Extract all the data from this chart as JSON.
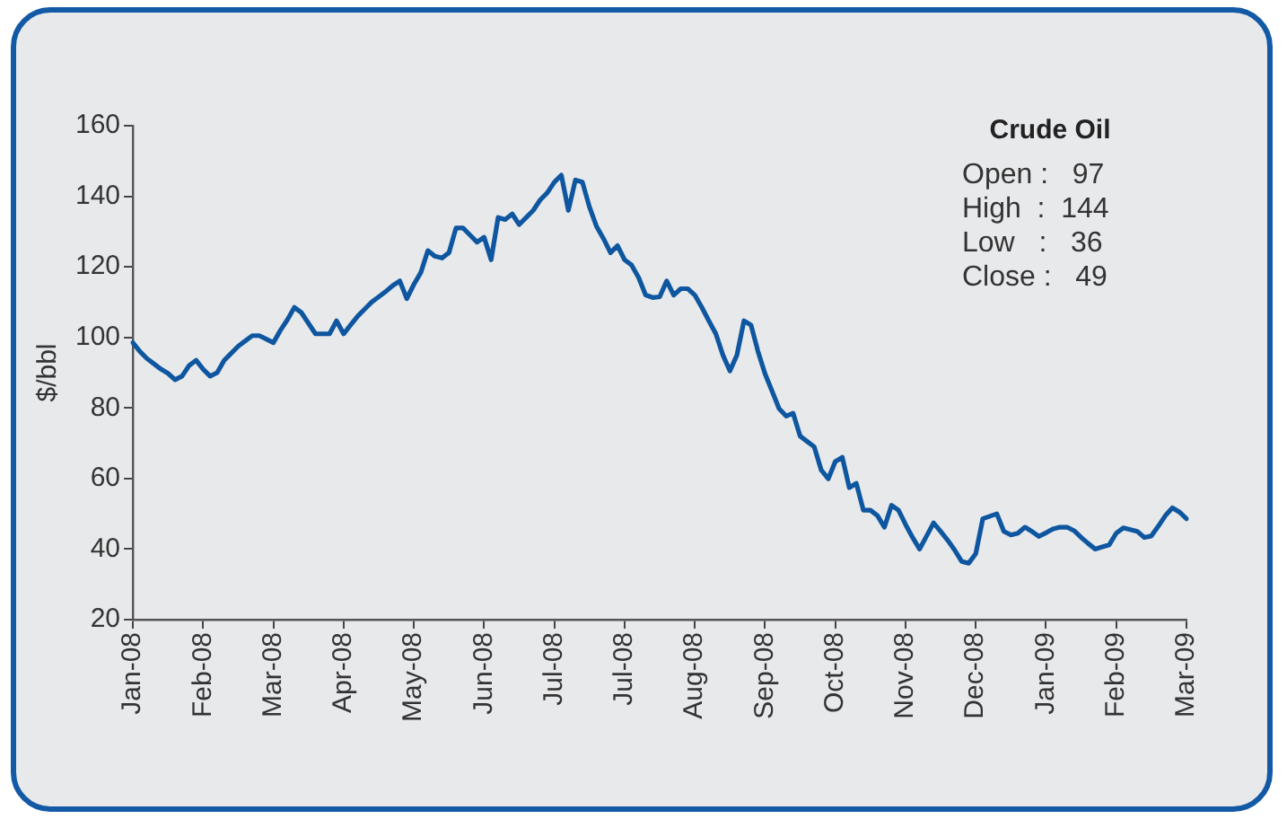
{
  "chart_data": {
    "type": "line",
    "title": "Crude Oil",
    "ylabel": "$/bbl",
    "annotations": [
      "Open :   97",
      "High  :  144",
      "Low   :   36",
      "Close :   49"
    ],
    "categories": [
      "Jan-08",
      null,
      null,
      null,
      null,
      null,
      null,
      null,
      null,
      null,
      "Feb-08",
      null,
      null,
      null,
      null,
      null,
      null,
      null,
      null,
      null,
      "Mar-08",
      null,
      null,
      null,
      null,
      null,
      null,
      null,
      null,
      null,
      "Apr-08",
      null,
      null,
      null,
      null,
      null,
      null,
      null,
      null,
      null,
      "May-08",
      null,
      null,
      null,
      null,
      null,
      null,
      null,
      null,
      null,
      "Jun-08",
      null,
      null,
      null,
      null,
      null,
      null,
      null,
      null,
      null,
      "Jul-08",
      null,
      null,
      null,
      null,
      null,
      null,
      null,
      null,
      null,
      "Jul-08",
      null,
      null,
      null,
      null,
      null,
      null,
      null,
      null,
      null,
      "Aug-08",
      null,
      null,
      null,
      null,
      null,
      null,
      null,
      null,
      null,
      "Sep-08",
      null,
      null,
      null,
      null,
      null,
      null,
      null,
      null,
      null,
      "Oct-08",
      null,
      null,
      null,
      null,
      null,
      null,
      null,
      null,
      null,
      "Nov-08",
      null,
      null,
      null,
      null,
      null,
      null,
      null,
      null,
      null,
      "Dec-08",
      null,
      null,
      null,
      null,
      null,
      null,
      null,
      null,
      null,
      "Jan-09",
      null,
      null,
      null,
      null,
      null,
      null,
      null,
      null,
      null,
      "Feb-09",
      null,
      null,
      null,
      null,
      null,
      null,
      null,
      null,
      null,
      "Mar-09"
    ],
    "series": [
      {
        "color": "#0e56a0",
        "values": [
          98.5,
          96,
          94,
          92.5,
          91,
          89.8,
          88,
          89,
          92,
          93.5,
          91,
          89,
          90,
          93.5,
          95.5,
          97.5,
          99,
          100.5,
          100.5,
          99.5,
          98.5,
          102,
          105,
          108.5,
          107,
          104,
          101,
          101,
          101,
          104.7,
          101,
          103.5,
          106,
          108,
          110,
          111.5,
          113,
          114.7,
          116,
          111,
          115,
          118.4,
          124.6,
          123,
          122.5,
          124,
          131,
          131,
          129,
          127,
          128.4,
          122,
          134,
          133.4,
          135,
          132,
          134,
          136,
          139,
          141,
          144,
          146,
          136,
          144.6,
          144,
          137,
          131.5,
          128,
          124,
          126,
          122,
          120.5,
          117,
          112,
          111.3,
          111.5,
          116,
          112,
          113.8,
          113.8,
          112,
          108.5,
          104.7,
          101,
          95,
          90.5,
          95,
          104.7,
          103.5,
          96,
          89.7,
          84.8,
          79.8,
          77.7,
          78.5,
          72,
          70.5,
          69,
          62.4,
          59.9,
          64.8,
          66,
          57.4,
          58.6,
          51,
          51,
          49.5,
          46.2,
          52.4,
          51,
          47,
          43.3,
          40,
          43.7,
          47.4,
          45,
          42.5,
          39.7,
          36.5,
          36,
          38.7,
          48.6,
          49.3,
          50,
          45,
          44,
          44.5,
          46.2,
          45,
          43.6,
          44.6,
          45.7,
          46.2,
          46.2,
          45.2,
          43.3,
          41.6,
          40,
          40.6,
          41.2,
          44.5,
          46,
          45.5,
          45,
          43.3,
          43.7,
          46.5,
          49.5,
          51.7,
          50.5,
          48.6
        ]
      }
    ],
    "ylim": [
      20,
      160
    ],
    "yticks": [
      20,
      40,
      60,
      80,
      100,
      120,
      140,
      160
    ],
    "grid": false,
    "legend": false,
    "marker": "none",
    "line_style": "solid"
  }
}
